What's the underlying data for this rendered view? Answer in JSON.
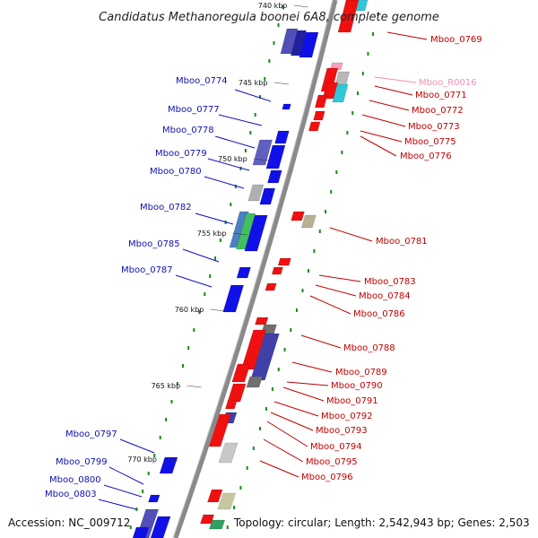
{
  "title": "Candidatus Methanoregula boonei 6A8, complete genome",
  "footer": {
    "accession": "Accession: NC_009712",
    "topology": "Topology: circular; Length: 2,542,943 bp; Genes: 2,503"
  },
  "ticks": [
    "740 kbp",
    "745 kbp",
    "750 kbp",
    "755 kbp",
    "760 kbp",
    "765 kbp",
    "770 kbp"
  ],
  "genes_left": [
    "Mboo_0774",
    "Mboo_0777",
    "Mboo_0778",
    "Mboo_0779",
    "Mboo_0780",
    "Mboo_0782",
    "Mboo_0785",
    "Mboo_0787",
    "Mboo_0797",
    "Mboo_0799",
    "Mboo_0800",
    "Mboo_0803"
  ],
  "genes_right": [
    "Mboo_0769",
    "Mboo_R0016",
    "Mboo_0771",
    "Mboo_0772",
    "Mboo_0773",
    "Mboo_0775",
    "Mboo_0776",
    "Mboo_0781",
    "Mboo_0783",
    "Mboo_0784",
    "Mboo_0786",
    "Mboo_0788",
    "Mboo_0789",
    "Mboo_0790",
    "Mboo_0791",
    "Mboo_0792",
    "Mboo_0793",
    "Mboo_0794",
    "Mboo_0795",
    "Mboo_0796"
  ],
  "colors": {
    "forward_gene": "#0b0bef",
    "reverse_gene": "#ee0b0b",
    "rna": "#f8a0c0",
    "backbone": "#808080",
    "gc_dots": "#1a8a1a"
  }
}
